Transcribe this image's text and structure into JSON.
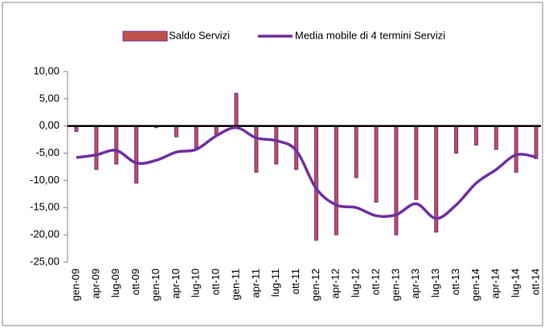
{
  "chart_data": {
    "type": "bar_line",
    "categories": [
      "gen-09",
      "apr-09",
      "lug-09",
      "ott-09",
      "gen-10",
      "apr-10",
      "lug-10",
      "ott-10",
      "gen-11",
      "apr-11",
      "lug-11",
      "ott-11",
      "gen-12",
      "apr-12",
      "lug-12",
      "ott-12",
      "gen-13",
      "apr-13",
      "lug-13",
      "ott-13",
      "gen-14",
      "apr-14",
      "lug-14",
      "ott-14"
    ],
    "series": [
      {
        "name": "Saldo Servizi",
        "type": "bar",
        "color": "#c0504d",
        "edge_color": "#7030a0",
        "values": [
          -1,
          -8,
          -7,
          -10.5,
          -0.3,
          -2,
          -4,
          -1.5,
          6,
          -8.5,
          -7,
          -8,
          -21,
          -20,
          -9.5,
          -14,
          -20,
          -13.5,
          -19.5,
          -5,
          -3.5,
          -4.3,
          -8.5,
          -6
        ]
      },
      {
        "name": "Media mobile di 4 termini Servizi",
        "type": "line",
        "color": "#7030a0",
        "values": [
          -5.8,
          -5.3,
          -4.5,
          -6.8,
          -6.3,
          -4.8,
          -4.3,
          -1.8,
          -0.3,
          -2.2,
          -2.7,
          -4.5,
          -11.5,
          -14.5,
          -15,
          -16.5,
          -16.3,
          -14.3,
          -17,
          -14.5,
          -10.5,
          -8,
          -5.3,
          -5.7
        ]
      }
    ],
    "ylim": [
      -25,
      10
    ],
    "yticks": [
      {
        "value": -25,
        "label": "-25,00"
      },
      {
        "value": -20,
        "label": "-20,00"
      },
      {
        "value": -15,
        "label": "-15,00"
      },
      {
        "value": -10,
        "label": "-10,00"
      },
      {
        "value": -5,
        "label": "-5,00"
      },
      {
        "value": 0,
        "label": "0,00"
      },
      {
        "value": 5,
        "label": "5,00"
      },
      {
        "value": 10,
        "label": "10,00"
      }
    ],
    "legend": "top",
    "grid": false
  }
}
